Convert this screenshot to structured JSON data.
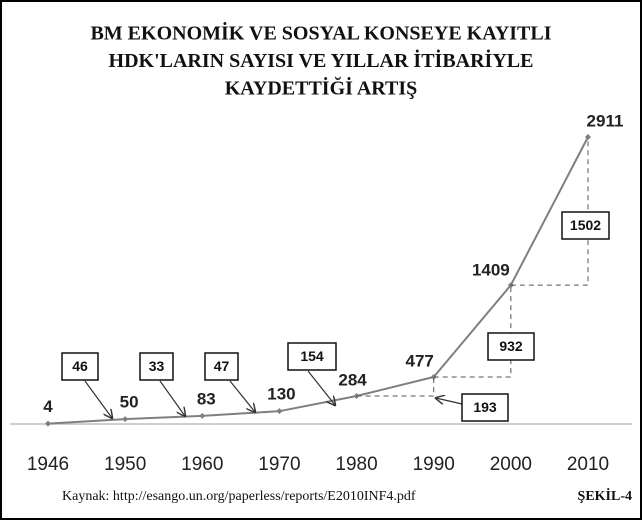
{
  "chart_data": {
    "type": "line",
    "title": [
      "BM EKONOMİK VE SOSYAL KONSEYE KAYITLI",
      "HDK'LARIN SAYISI VE YILLAR İTİBARİYLE",
      "KAYDETTİĞİ ARTIŞ"
    ],
    "categories": [
      "1946",
      "1950",
      "1960",
      "1970",
      "1980",
      "1990",
      "2000",
      "2010"
    ],
    "series": [
      {
        "color": "#7f7f7f",
        "values": [
          4,
          50,
          83,
          130,
          284,
          477,
          1409,
          2911
        ]
      }
    ],
    "increments": [
      46,
      33,
      47,
      154,
      193,
      932,
      1502
    ],
    "source": "Kaynak: http://esango.un.org/paperless/reports/E2010INF4.pdf",
    "figure_label": "ŞEKİL-4"
  }
}
